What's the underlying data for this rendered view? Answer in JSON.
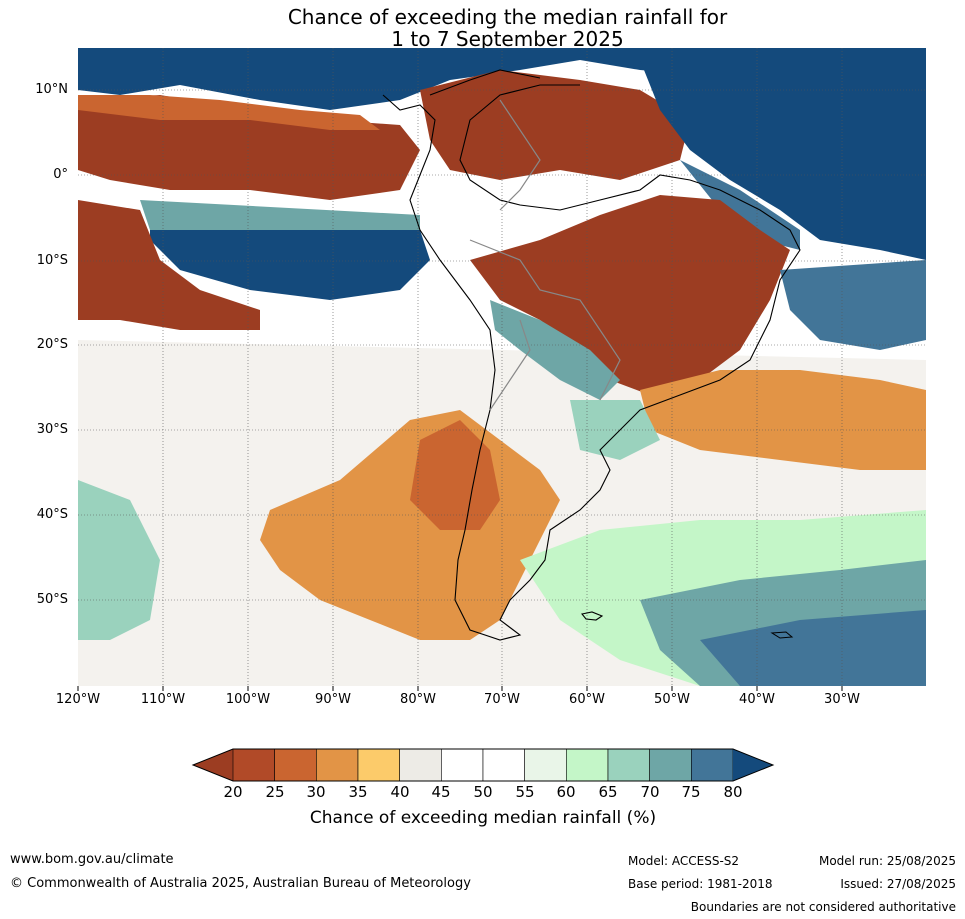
{
  "title_line1": "Chance of exceeding the median rainfall for",
  "title_line2": "1 to 7 September 2025",
  "map": {
    "lat_labels": [
      "10°N",
      "0°",
      "10°S",
      "20°S",
      "30°S",
      "40°S",
      "50°S"
    ],
    "lon_labels": [
      "120°W",
      "110°W",
      "100°W",
      "90°W",
      "80°W",
      "70°W",
      "60°W",
      "50°W",
      "40°W",
      "30°W"
    ]
  },
  "colorbar": {
    "ticks": [
      "20",
      "25",
      "30",
      "35",
      "40",
      "45",
      "50",
      "55",
      "60",
      "65",
      "70",
      "75",
      "80"
    ],
    "colors": [
      "#9c3d22",
      "#b14a28",
      "#ca6530",
      "#e29446",
      "#fccb6a",
      "#edebe6",
      "#ffffff",
      "#ffffff",
      "#e9f5e8",
      "#c4f6c8",
      "#9ad2bd",
      "#6ea6a6",
      "#427598",
      "#144a7c"
    ],
    "label": "Chance of exceeding median rainfall (%)"
  },
  "footer": {
    "website": "www.bom.gov.au/climate",
    "copyright": "© Commonwealth of Australia 2025, Australian Bureau of Meteorology",
    "model": "Model: ACCESS-S2",
    "base_period": "Base period: 1981-2018",
    "model_run": "Model run: 25/08/2025",
    "issued": "Issued: 27/08/2025",
    "disclaimer": "Boundaries are not considered authoritative"
  }
}
